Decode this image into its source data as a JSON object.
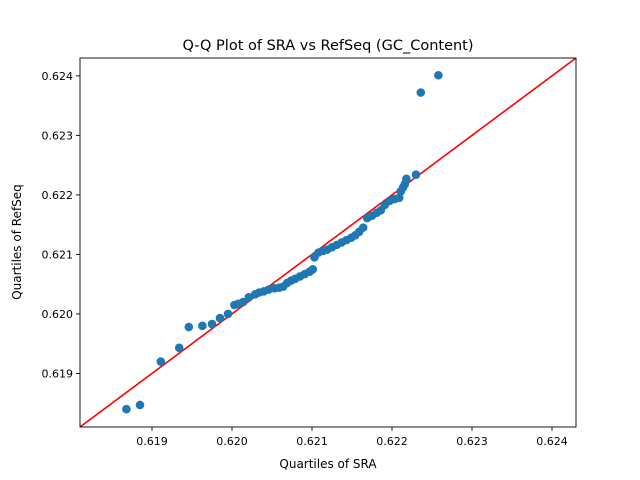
{
  "chart_data": {
    "type": "scatter",
    "title": "Q-Q Plot of SRA vs RefSeq (GC_Content)",
    "xlabel": "Quartiles of SRA",
    "ylabel": "Quartiles of RefSeq",
    "xlim": [
      0.6181,
      0.6243
    ],
    "ylim": [
      0.6181,
      0.6243
    ],
    "xticks": [
      "0.619",
      "0.620",
      "0.621",
      "0.622",
      "0.623",
      "0.624"
    ],
    "yticks": [
      "0.619",
      "0.620",
      "0.621",
      "0.622",
      "0.623",
      "0.624"
    ],
    "grid": false,
    "colors": {
      "points": "#1f77b4",
      "reference_line": "#ff0000"
    },
    "reference_line": {
      "from": [
        0.6181,
        0.6181
      ],
      "to": [
        0.6243,
        0.6243
      ]
    },
    "points": [
      [
        0.61868,
        0.6184
      ],
      [
        0.61885,
        0.61847
      ],
      [
        0.61911,
        0.6192
      ],
      [
        0.61934,
        0.61943
      ],
      [
        0.61946,
        0.61978
      ],
      [
        0.61963,
        0.6198
      ],
      [
        0.61975,
        0.61983
      ],
      [
        0.61985,
        0.61993
      ],
      [
        0.61995,
        0.62
      ],
      [
        0.62003,
        0.62015
      ],
      [
        0.62008,
        0.62017
      ],
      [
        0.62014,
        0.6202
      ],
      [
        0.62021,
        0.62028
      ],
      [
        0.62029,
        0.62033
      ],
      [
        0.62034,
        0.62036
      ],
      [
        0.6204,
        0.62038
      ],
      [
        0.62046,
        0.62041
      ],
      [
        0.62053,
        0.62043
      ],
      [
        0.62059,
        0.62044
      ],
      [
        0.62064,
        0.62046
      ],
      [
        0.62069,
        0.62052
      ],
      [
        0.62074,
        0.62056
      ],
      [
        0.62079,
        0.62059
      ],
      [
        0.62085,
        0.62063
      ],
      [
        0.62091,
        0.62067
      ],
      [
        0.62097,
        0.62071
      ],
      [
        0.62101,
        0.62075
      ],
      [
        0.62103,
        0.62095
      ],
      [
        0.62108,
        0.62103
      ],
      [
        0.62114,
        0.62106
      ],
      [
        0.62119,
        0.62108
      ],
      [
        0.62125,
        0.62112
      ],
      [
        0.62131,
        0.62116
      ],
      [
        0.62137,
        0.6212
      ],
      [
        0.62143,
        0.62124
      ],
      [
        0.62149,
        0.62128
      ],
      [
        0.62154,
        0.62132
      ],
      [
        0.62159,
        0.62138
      ],
      [
        0.62164,
        0.62145
      ],
      [
        0.62169,
        0.62161
      ],
      [
        0.62175,
        0.62165
      ],
      [
        0.62181,
        0.6217
      ],
      [
        0.62186,
        0.62174
      ],
      [
        0.62191,
        0.62183
      ],
      [
        0.62197,
        0.6219
      ],
      [
        0.62203,
        0.62193
      ],
      [
        0.62209,
        0.62195
      ],
      [
        0.62211,
        0.62206
      ],
      [
        0.62214,
        0.62213
      ],
      [
        0.62216,
        0.62218
      ],
      [
        0.62218,
        0.62227
      ],
      [
        0.6223,
        0.62234
      ],
      [
        0.62236,
        0.62372
      ],
      [
        0.62258,
        0.62401
      ]
    ]
  }
}
